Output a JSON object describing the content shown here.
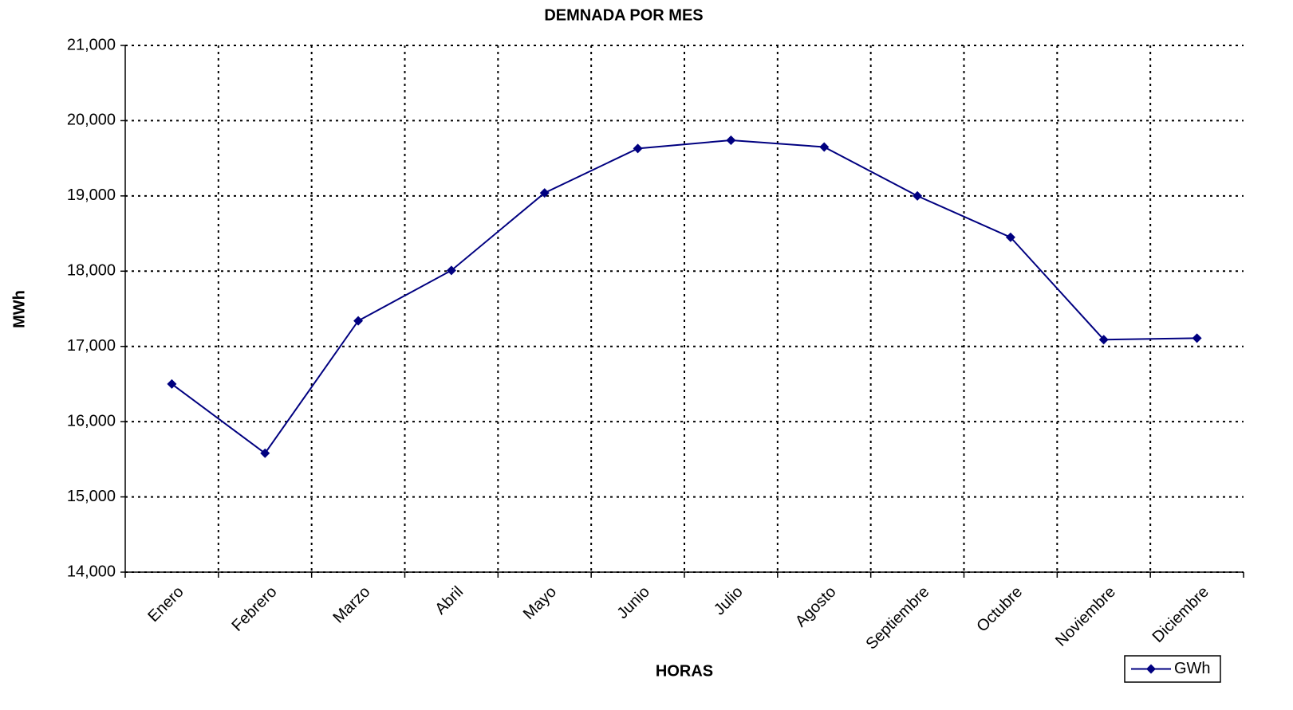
{
  "chart_data": {
    "type": "line",
    "title": "DEMNADA POR MES",
    "x_label": "HORAS",
    "y_label": "MWh",
    "categories": [
      "Enero",
      "Febrero",
      "Marzo",
      "Abril",
      "Mayo",
      "Junio",
      "Julio",
      "Agosto",
      "Septiembre",
      "Octubre",
      "Noviembre",
      "Diciembre"
    ],
    "series": [
      {
        "name": "GWh",
        "color": "#000080",
        "values": [
          16500,
          15580,
          17340,
          18010,
          19040,
          19630,
          19740,
          19650,
          19000,
          18450,
          17090,
          17110
        ]
      }
    ],
    "ylim": [
      14000,
      21000
    ],
    "yticks": [
      {
        "value": 14000,
        "label": "14,000"
      },
      {
        "value": 15000,
        "label": "15,000"
      },
      {
        "value": 16000,
        "label": "16,000"
      },
      {
        "value": 17000,
        "label": "17,000"
      },
      {
        "value": 18000,
        "label": "18,000"
      },
      {
        "value": 19000,
        "label": "19,000"
      },
      {
        "value": 20000,
        "label": "20,000"
      },
      {
        "value": 21000,
        "label": "21,000"
      }
    ],
    "grid": true,
    "legend": "bottom-right"
  }
}
